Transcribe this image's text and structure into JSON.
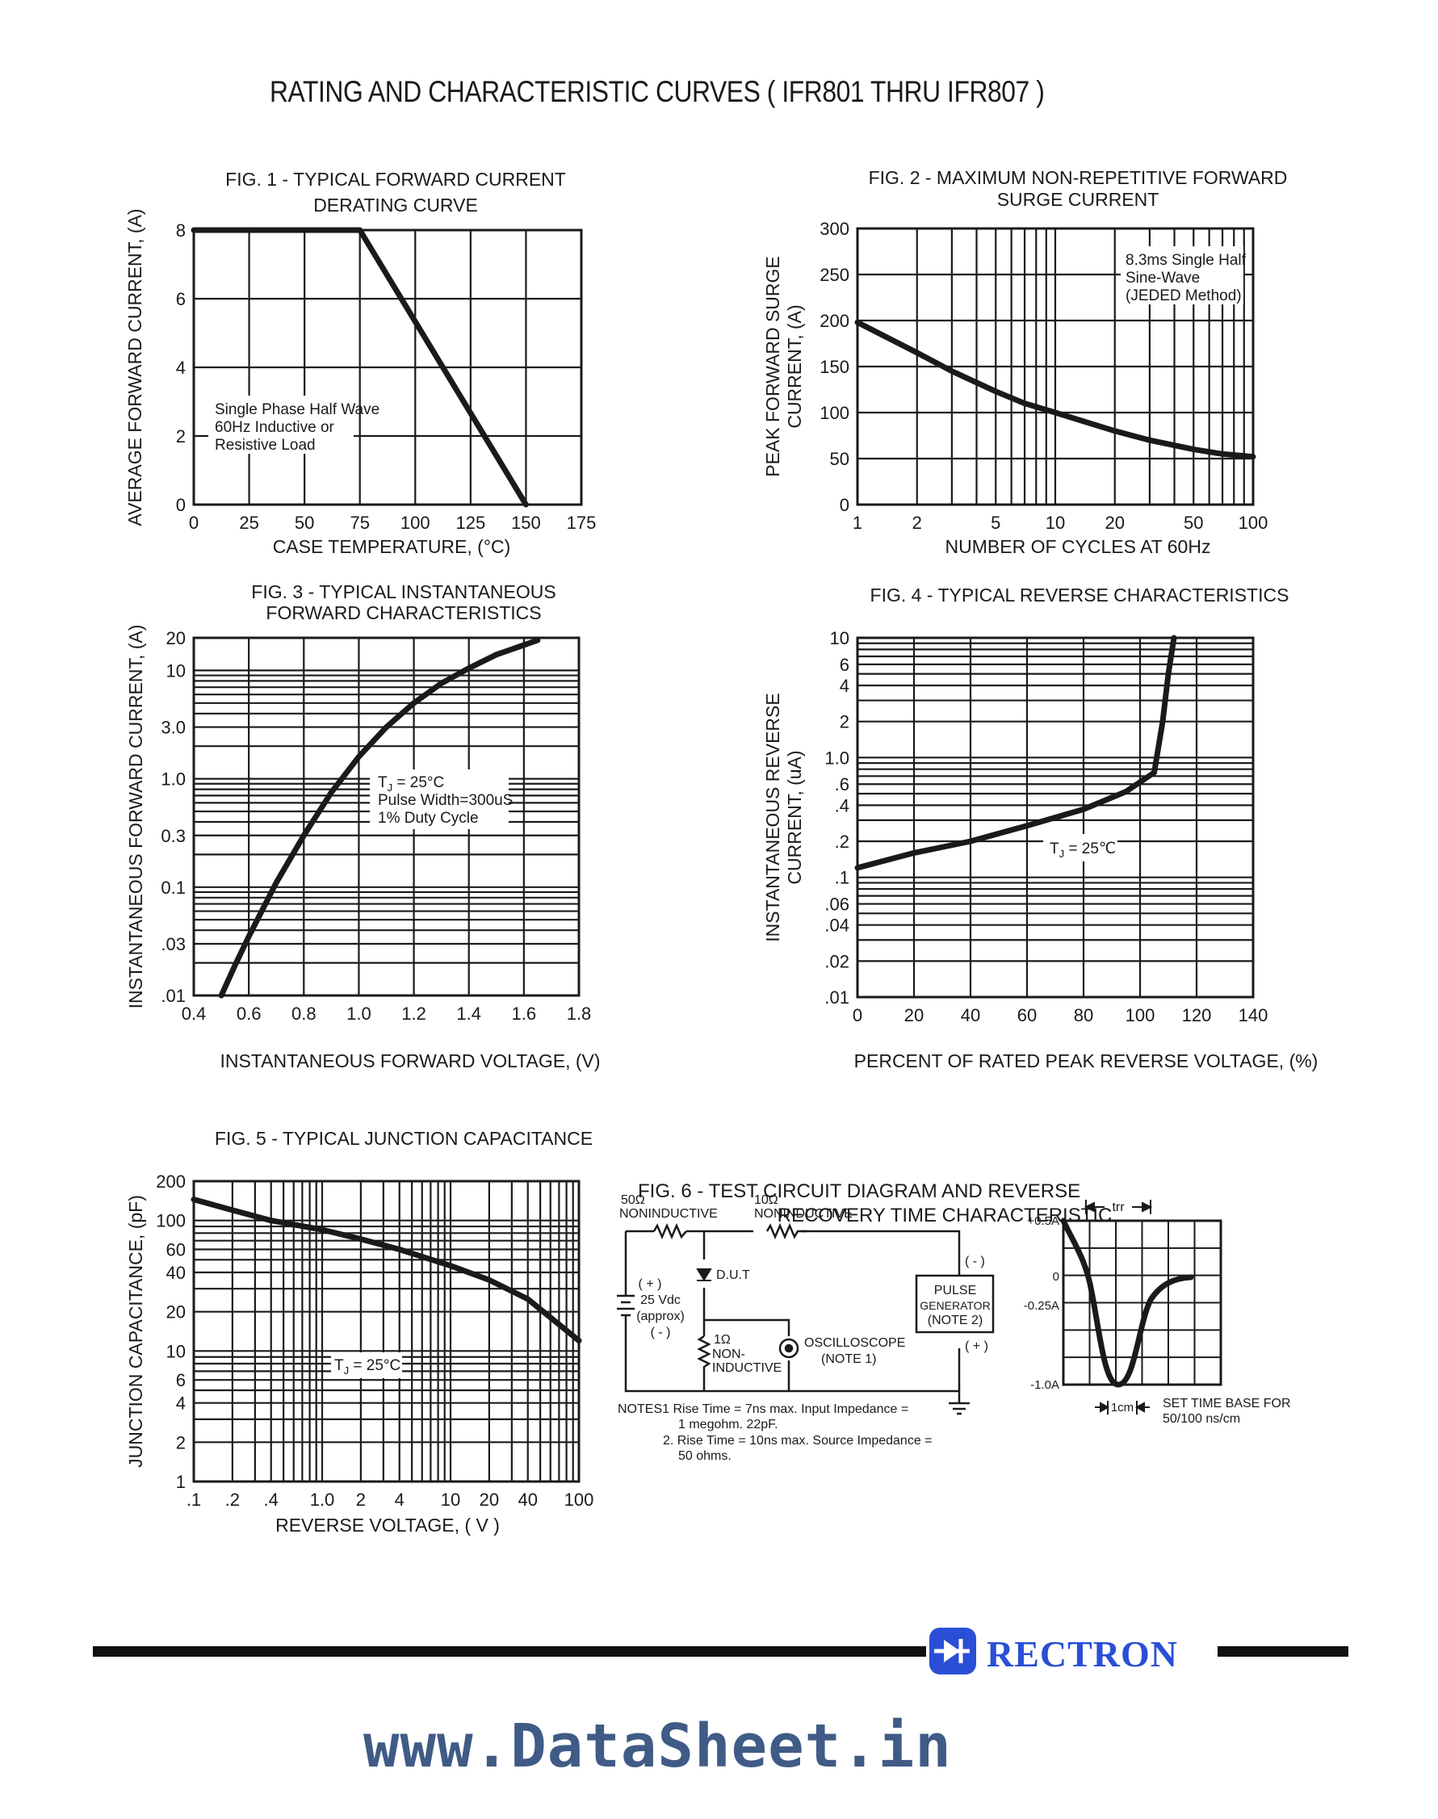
{
  "title": "RATING AND CHARACTERISTIC CURVES ( IFR801 THRU IFR807 )",
  "brand": {
    "name": "RECTRON",
    "color": "#2a4fd6",
    "icon": "diode-logo-icon"
  },
  "watermark": "www.DataSheet.in",
  "chart_data": [
    {
      "id": "fig1",
      "type": "line",
      "title": [
        "FIG. 1 - TYPICAL FORWARD CURRENT",
        "DERATING CURVE"
      ],
      "xlabel": "CASE TEMPERATURE, (°C)",
      "ylabel": "AVERAGE FORWARD CURRENT, (A)",
      "xscale": "linear",
      "yscale": "linear",
      "xlim": [
        0,
        175
      ],
      "ylim": [
        0,
        8
      ],
      "xticks": [
        {
          "v": 0,
          "label": "0"
        },
        {
          "v": 25,
          "label": "25"
        },
        {
          "v": 50,
          "label": "50"
        },
        {
          "v": 75,
          "label": "75"
        },
        {
          "v": 100,
          "label": "100"
        },
        {
          "v": 125,
          "label": "125"
        },
        {
          "v": 150,
          "label": "150"
        },
        {
          "v": 175,
          "label": "175"
        }
      ],
      "yticks": [
        {
          "v": 0,
          "label": "0"
        },
        {
          "v": 2,
          "label": "2"
        },
        {
          "v": 4,
          "label": "4"
        },
        {
          "v": 6,
          "label": "6"
        },
        {
          "v": 8,
          "label": "8"
        }
      ],
      "xgrid": [
        25,
        50,
        75,
        100,
        125,
        150
      ],
      "ygrid": [
        2,
        4,
        6
      ],
      "annotation": [
        "Single Phase Half Wave",
        "60Hz Inductive or",
        "Resistive Load"
      ],
      "series": [
        {
          "x": [
            0,
            75,
            150
          ],
          "y": [
            8,
            8,
            0
          ]
        }
      ]
    },
    {
      "id": "fig2",
      "type": "line",
      "title": [
        "FIG. 2 - MAXIMUM NON-REPETITIVE FORWARD",
        "SURGE CURRENT"
      ],
      "xlabel": "NUMBER OF CYCLES AT 60Hz",
      "ylabel": [
        "PEAK FORWARD SURGE",
        "CURRENT, (A)"
      ],
      "xscale": "log",
      "yscale": "linear",
      "xlim": [
        1,
        100
      ],
      "ylim": [
        0,
        300
      ],
      "xticks": [
        {
          "v": 1,
          "label": "1"
        },
        {
          "v": 2,
          "label": "2"
        },
        {
          "v": 5,
          "label": "5"
        },
        {
          "v": 10,
          "label": "10"
        },
        {
          "v": 20,
          "label": "20"
        },
        {
          "v": 50,
          "label": "50"
        },
        {
          "v": 100,
          "label": "100"
        }
      ],
      "yticks": [
        {
          "v": 0,
          "label": "0"
        },
        {
          "v": 50,
          "label": "50"
        },
        {
          "v": 100,
          "label": "100"
        },
        {
          "v": 150,
          "label": "150"
        },
        {
          "v": 200,
          "label": "200"
        },
        {
          "v": 250,
          "label": "250"
        },
        {
          "v": 300,
          "label": "300"
        }
      ],
      "xgrid": [
        2,
        3,
        4,
        5,
        6,
        7,
        8,
        9,
        10,
        20,
        30,
        40,
        50,
        60,
        70,
        80,
        90
      ],
      "ygrid": [
        50,
        100,
        150,
        200,
        250
      ],
      "annotation": [
        "8.3ms Single Half",
        "Sine-Wave",
        "(JEDED Method)"
      ],
      "series": [
        {
          "x": [
            1,
            2,
            3,
            5,
            7,
            10,
            20,
            30,
            50,
            70,
            100
          ],
          "y": [
            198,
            165,
            145,
            123,
            110,
            100,
            80,
            70,
            60,
            55,
            52
          ]
        }
      ]
    },
    {
      "id": "fig3",
      "type": "line",
      "title": [
        "FIG. 3 - TYPICAL INSTANTANEOUS",
        "FORWARD CHARACTERISTICS"
      ],
      "xlabel": "INSTANTANEOUS FORWARD VOLTAGE, (V)",
      "ylabel": "INSTANTANEOUS FORWARD CURRENT, (A)",
      "xscale": "linear",
      "yscale": "log",
      "xlim": [
        0.4,
        1.8
      ],
      "ylim": [
        0.01,
        20
      ],
      "xticks": [
        {
          "v": 0.4,
          "label": "0.4"
        },
        {
          "v": 0.6,
          "label": "0.6"
        },
        {
          "v": 0.8,
          "label": "0.8"
        },
        {
          "v": 1.0,
          "label": "1.0"
        },
        {
          "v": 1.2,
          "label": "1.2"
        },
        {
          "v": 1.4,
          "label": "1.4"
        },
        {
          "v": 1.6,
          "label": "1.6"
        },
        {
          "v": 1.8,
          "label": "1.8"
        }
      ],
      "yticks": [
        {
          "v": 0.01,
          "label": ".01"
        },
        {
          "v": 0.03,
          "label": ".03"
        },
        {
          "v": 0.1,
          "label": "0.1"
        },
        {
          "v": 0.3,
          "label": "0.3"
        },
        {
          "v": 1,
          "label": "1.0"
        },
        {
          "v": 3,
          "label": "3.0"
        },
        {
          "v": 10,
          "label": "10"
        },
        {
          "v": 20,
          "label": "20"
        }
      ],
      "xgrid": [
        0.6,
        0.8,
        1.0,
        1.2,
        1.4,
        1.6
      ],
      "ygrid": [
        0.02,
        0.03,
        0.04,
        0.05,
        0.06,
        0.07,
        0.08,
        0.09,
        0.1,
        0.2,
        0.3,
        0.4,
        0.5,
        0.6,
        0.7,
        0.8,
        0.9,
        1,
        2,
        3,
        4,
        5,
        6,
        7,
        8,
        9,
        10
      ],
      "annotation": [
        "T",
        "J",
        " = 25°C",
        "Pulse Width=300uS",
        "1% Duty Cycle"
      ],
      "series": [
        {
          "x": [
            0.5,
            0.55,
            0.6,
            0.7,
            0.8,
            0.9,
            1.0,
            1.1,
            1.2,
            1.3,
            1.4,
            1.5,
            1.65
          ],
          "y": [
            0.01,
            0.019,
            0.035,
            0.11,
            0.3,
            0.75,
            1.6,
            3.0,
            5.0,
            7.6,
            10.5,
            14,
            19
          ]
        }
      ]
    },
    {
      "id": "fig4",
      "type": "line",
      "title": "FIG. 4 - TYPICAL REVERSE CHARACTERISTICS",
      "xlabel": "PERCENT OF RATED PEAK REVERSE VOLTAGE, (%)",
      "ylabel": [
        "INSTANTANEOUS REVERSE",
        "CURRENT, (uA)"
      ],
      "xscale": "linear",
      "yscale": "log",
      "xlim": [
        0,
        140
      ],
      "ylim": [
        0.01,
        10
      ],
      "xticks": [
        {
          "v": 0,
          "label": "0"
        },
        {
          "v": 20,
          "label": "20"
        },
        {
          "v": 40,
          "label": "40"
        },
        {
          "v": 60,
          "label": "60"
        },
        {
          "v": 80,
          "label": "80"
        },
        {
          "v": 100,
          "label": "100"
        },
        {
          "v": 120,
          "label": "120"
        },
        {
          "v": 140,
          "label": "140"
        }
      ],
      "yticks": [
        {
          "v": 0.01,
          "label": ".01"
        },
        {
          "v": 0.02,
          "label": ".02"
        },
        {
          "v": 0.04,
          "label": ".04"
        },
        {
          "v": 0.06,
          "label": ".06"
        },
        {
          "v": 0.1,
          "label": ".1"
        },
        {
          "v": 0.2,
          "label": ".2"
        },
        {
          "v": 0.4,
          "label": ".4"
        },
        {
          "v": 0.6,
          "label": ".6"
        },
        {
          "v": 1,
          "label": "1.0"
        },
        {
          "v": 2,
          "label": "2"
        },
        {
          "v": 4,
          "label": "4"
        },
        {
          "v": 6,
          "label": "6"
        },
        {
          "v": 10,
          "label": "10"
        }
      ],
      "xgrid": [
        20,
        40,
        60,
        80,
        100,
        120
      ],
      "ygrid": [
        0.02,
        0.03,
        0.04,
        0.05,
        0.06,
        0.07,
        0.08,
        0.09,
        0.1,
        0.2,
        0.3,
        0.4,
        0.5,
        0.6,
        0.7,
        0.8,
        0.9,
        1,
        2,
        3,
        4,
        5,
        6,
        7,
        8,
        9
      ],
      "annotation": [
        "T",
        "J",
        " = 25℃"
      ],
      "series": [
        {
          "x": [
            0,
            20,
            40,
            60,
            80,
            95,
            105,
            108,
            110,
            112
          ],
          "y": [
            0.12,
            0.16,
            0.2,
            0.27,
            0.37,
            0.52,
            0.75,
            2.0,
            5.0,
            10
          ]
        }
      ]
    },
    {
      "id": "fig5",
      "type": "line",
      "title": "FIG. 5 - TYPICAL JUNCTION CAPACITANCE",
      "xlabel": "REVERSE VOLTAGE, ( V )",
      "ylabel": "JUNCTION CAPACITANCE, (pF)",
      "xscale": "log",
      "yscale": "log",
      "xlim": [
        0.1,
        100
      ],
      "ylim": [
        1,
        200
      ],
      "xticks": [
        {
          "v": 0.1,
          "label": ".1"
        },
        {
          "v": 0.2,
          "label": ".2"
        },
        {
          "v": 0.4,
          "label": ".4"
        },
        {
          "v": 1,
          "label": "1.0"
        },
        {
          "v": 2,
          "label": "2"
        },
        {
          "v": 4,
          "label": "4"
        },
        {
          "v": 10,
          "label": "10"
        },
        {
          "v": 20,
          "label": "20"
        },
        {
          "v": 40,
          "label": "40"
        },
        {
          "v": 100,
          "label": "100"
        }
      ],
      "yticks": [
        {
          "v": 1,
          "label": "1"
        },
        {
          "v": 2,
          "label": "2"
        },
        {
          "v": 4,
          "label": "4"
        },
        {
          "v": 6,
          "label": "6"
        },
        {
          "v": 10,
          "label": "10"
        },
        {
          "v": 20,
          "label": "20"
        },
        {
          "v": 40,
          "label": "40"
        },
        {
          "v": 60,
          "label": "60"
        },
        {
          "v": 100,
          "label": "100"
        },
        {
          "v": 200,
          "label": "200"
        }
      ],
      "xgrid": [
        0.2,
        0.3,
        0.4,
        0.5,
        0.6,
        0.7,
        0.8,
        0.9,
        1,
        2,
        3,
        4,
        5,
        6,
        7,
        8,
        9,
        10,
        20,
        30,
        40,
        50,
        60,
        70,
        80,
        90
      ],
      "ygrid": [
        2,
        3,
        4,
        5,
        6,
        7,
        8,
        9,
        10,
        20,
        30,
        40,
        50,
        60,
        70,
        80,
        90,
        100
      ],
      "annotation": [
        "T",
        "J",
        " = 25°C"
      ],
      "series": [
        {
          "x": [
            0.1,
            0.2,
            0.4,
            1,
            2,
            4,
            10,
            20,
            40,
            100
          ],
          "y": [
            145,
            120,
            100,
            85,
            72,
            60,
            45,
            35,
            25,
            12
          ]
        }
      ]
    }
  ],
  "fig6": {
    "title": [
      "FIG. 6 - TEST CIRCUIT DIAGRAM  AND REVERSE",
      "RECOVERY TIME CHARACTERISTIC"
    ],
    "r1": {
      "value": "50Ω",
      "label": "NONINDUCTIVE"
    },
    "r2": {
      "value": "10Ω",
      "label": "NONINDUCTIVE"
    },
    "dut": "D.U.T",
    "supply": [
      "( + )",
      "25 Vdc",
      "(approx)",
      "( - )"
    ],
    "r3": {
      "value": "1Ω",
      "label": [
        "NON-",
        "INDUCTIVE"
      ]
    },
    "scope": [
      "OSCILLOSCOPE",
      "(NOTE 1)"
    ],
    "pulse": [
      "PULSE",
      "GENERATOR",
      "(NOTE 2)"
    ],
    "pulse_minus": "( - )",
    "pulse_plus": "( + )",
    "notes": [
      "NOTES1  Rise Time = 7ns max. Input Impedance =",
      "1 megohm. 22pF.",
      "2. Rise Time = 10ns max. Source Impedance =",
      "50 ohms."
    ],
    "wave": {
      "trr_label": "trr",
      "levels": [
        {
          "v": 0.5,
          "label": "+0.5A"
        },
        {
          "v": 0,
          "label": "0"
        },
        {
          "v": -0.25,
          "label": "-0.25A"
        },
        {
          "v": -1.0,
          "label": "-1.0A"
        }
      ],
      "cm_label": "1cm",
      "timebase": [
        "SET TIME BASE FOR",
        "50/100 ns/cm"
      ]
    }
  }
}
